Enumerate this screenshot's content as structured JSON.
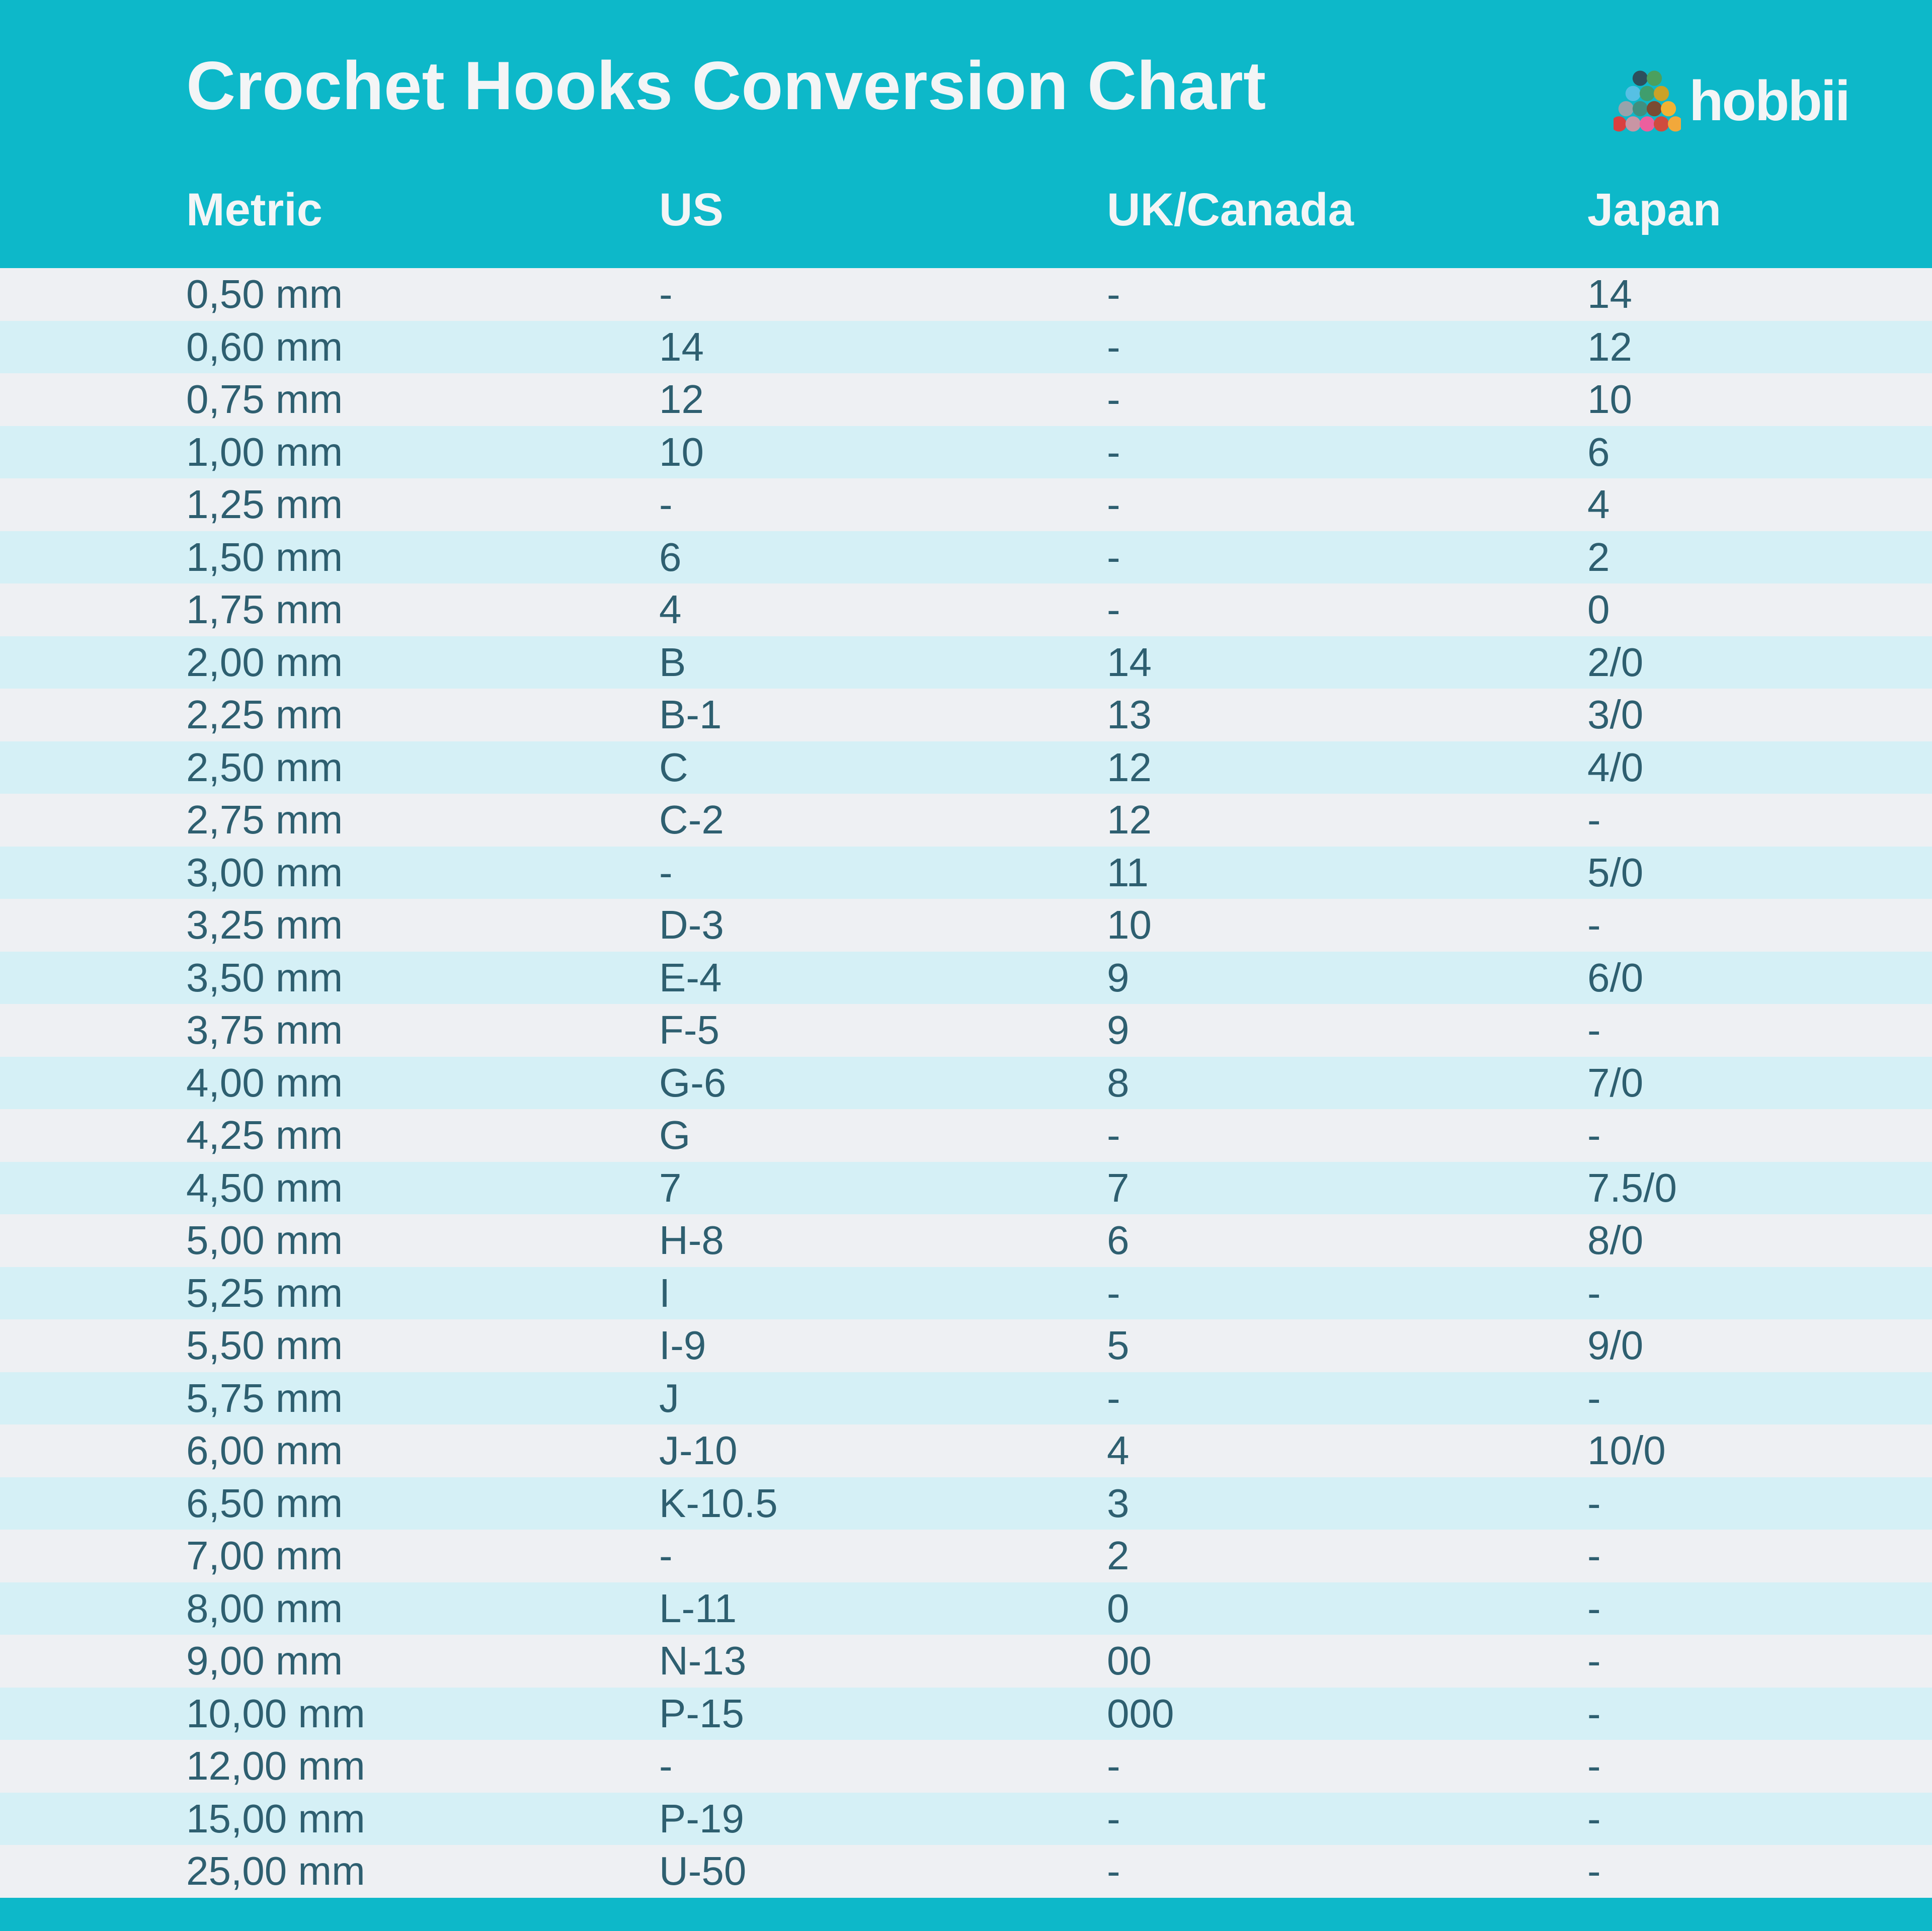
{
  "chart_data": {
    "type": "table",
    "title": "Crochet Hooks Conversion Chart",
    "columns": [
      "Metric",
      "US",
      "UK/Canada",
      "Japan"
    ],
    "rows": [
      [
        "0,50 mm",
        "-",
        "-",
        "14"
      ],
      [
        "0,60 mm",
        "14",
        "-",
        "12"
      ],
      [
        "0,75 mm",
        "12",
        "-",
        "10"
      ],
      [
        "1,00 mm",
        "10",
        "-",
        "6"
      ],
      [
        "1,25 mm",
        "-",
        "-",
        "4"
      ],
      [
        "1,50 mm",
        "6",
        "-",
        "2"
      ],
      [
        "1,75 mm",
        "4",
        "-",
        "0"
      ],
      [
        "2,00 mm",
        "B",
        "14",
        "2/0"
      ],
      [
        "2,25 mm",
        "B-1",
        "13",
        "3/0"
      ],
      [
        "2,50 mm",
        "C",
        "12",
        "4/0"
      ],
      [
        "2,75 mm",
        "C-2",
        "12",
        "-"
      ],
      [
        "3,00 mm",
        "-",
        "11",
        "5/0"
      ],
      [
        "3,25 mm",
        "D-3",
        "10",
        "-"
      ],
      [
        "3,50 mm",
        "E-4",
        "9",
        "6/0"
      ],
      [
        "3,75 mm",
        "F-5",
        "9",
        "-"
      ],
      [
        "4,00 mm",
        "G-6",
        "8",
        "7/0"
      ],
      [
        "4,25 mm",
        "G",
        "-",
        "-"
      ],
      [
        "4,50 mm",
        "7",
        "7",
        "7.5/0"
      ],
      [
        "5,00 mm",
        "H-8",
        "6",
        "8/0"
      ],
      [
        "5,25 mm",
        "I",
        "-",
        "-"
      ],
      [
        "5,50 mm",
        "I-9",
        "5",
        "9/0"
      ],
      [
        "5,75 mm",
        "J",
        "-",
        "-"
      ],
      [
        "6,00 mm",
        "J-10",
        "4",
        "10/0"
      ],
      [
        "6,50 mm",
        "K-10.5",
        "3",
        "-"
      ],
      [
        "7,00 mm",
        "-",
        "2",
        "-"
      ],
      [
        "8,00 mm",
        "L-11",
        "0",
        "-"
      ],
      [
        "9,00 mm",
        "N-13",
        "00",
        "-"
      ],
      [
        "10,00 mm",
        "P-15",
        "000",
        "-"
      ],
      [
        "12,00 mm",
        "-",
        "-",
        "-"
      ],
      [
        "15,00 mm",
        "P-19",
        "-",
        "-"
      ],
      [
        "25,00 mm",
        "U-50",
        "-",
        "-"
      ]
    ],
    "layout": {
      "header_position": "top",
      "row_striping": "alternating"
    }
  },
  "header": {
    "logo": {
      "text": "hobbii",
      "yarn_rows": [
        [
          "#2d4f5c",
          "#4ba05e"
        ],
        [
          "#56c0e4",
          "#3f9e6d",
          "#c9a227"
        ],
        [
          "#97a3ab",
          "#3f9080",
          "#7b4b32",
          "#f1b233"
        ],
        [
          "#d94040",
          "#c995a4",
          "#ec5f9e",
          "#cf4b3e",
          "#f2a83b"
        ]
      ]
    }
  },
  "colors": {
    "teal": "#0db8c9",
    "row_gray": "#eef0f3",
    "row_cyan": "#d5f0f6",
    "text_dark": "#2e5f70",
    "text_light": "#f3f5f6"
  }
}
